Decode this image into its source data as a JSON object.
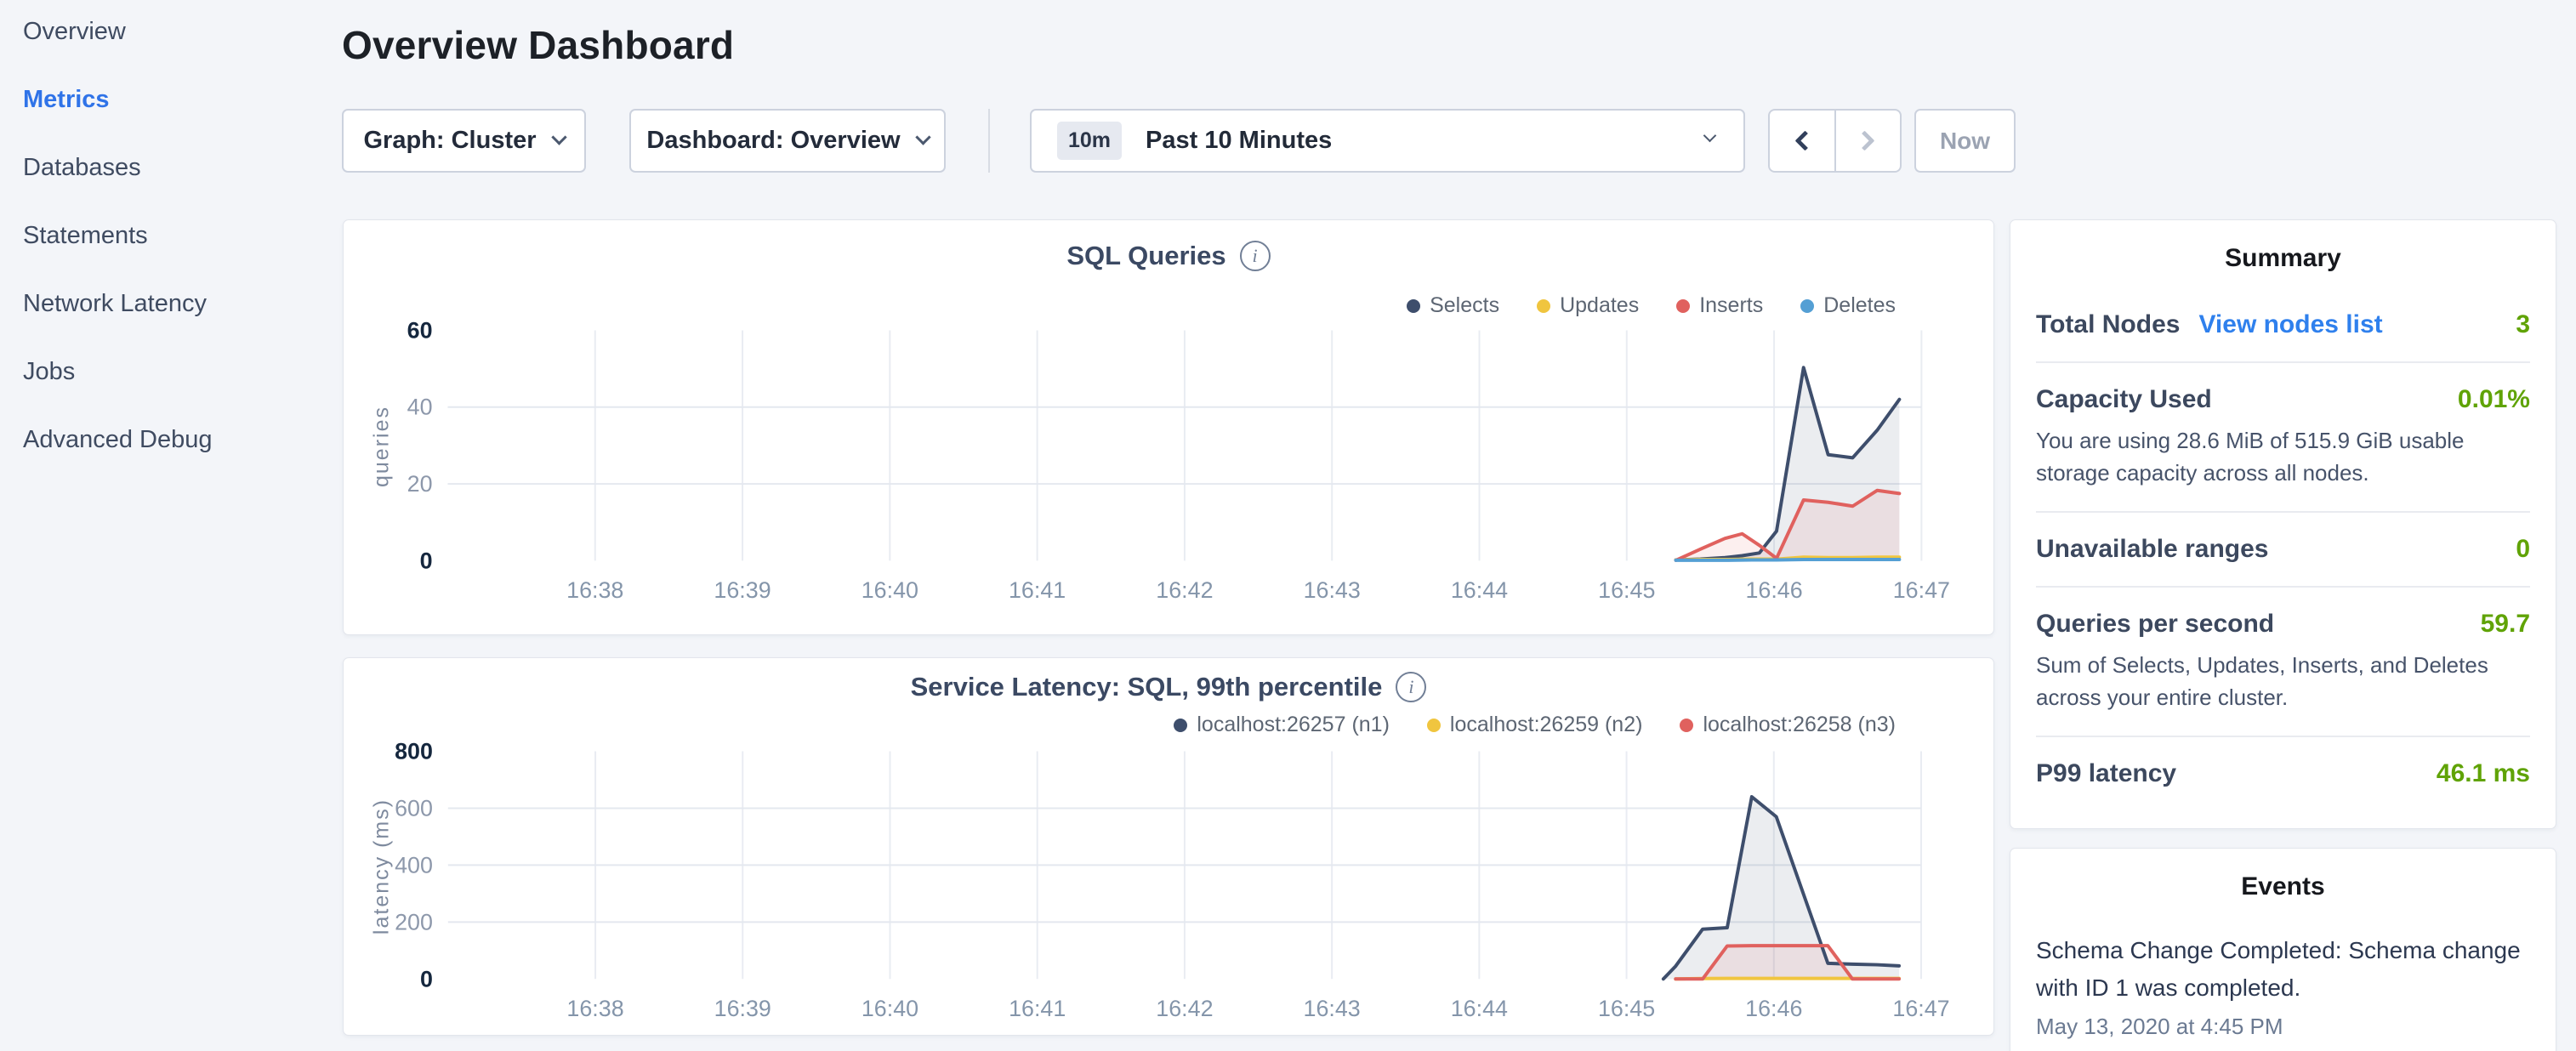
{
  "app": {
    "title": "Overview Dashboard"
  },
  "sidebar": {
    "items": [
      {
        "label": "Overview",
        "active": false
      },
      {
        "label": "Metrics",
        "active": true
      },
      {
        "label": "Databases",
        "active": false
      },
      {
        "label": "Statements",
        "active": false
      },
      {
        "label": "Network Latency",
        "active": false
      },
      {
        "label": "Jobs",
        "active": false
      },
      {
        "label": "Advanced Debug",
        "active": false
      }
    ]
  },
  "toolbar": {
    "graph_label": "Graph: Cluster",
    "dashboard_label": "Dashboard: Overview",
    "time_badge": "10m",
    "time_label": "Past 10 Minutes",
    "now_label": "Now"
  },
  "colors": {
    "sidebar_active_blue": "#2f73e8",
    "link_blue": "#2f80ed",
    "value_green": "#60a306",
    "navy_series": "#3e4e6c",
    "yellow_series": "#f0c53f",
    "red_series": "#e0615e",
    "blue_series": "#549fd4"
  },
  "chart_data": [
    {
      "type": "area",
      "title": "SQL Queries",
      "ylabel": "queries",
      "ylim": [
        0,
        60
      ],
      "x_domain_seconds": [
        0,
        600
      ],
      "grid": true,
      "legend_position": "top-right",
      "yticks": [
        {
          "v": 0,
          "label": "0",
          "strong": true
        },
        {
          "v": 20,
          "label": "20",
          "strong": false
        },
        {
          "v": 40,
          "label": "40",
          "strong": false
        },
        {
          "v": 60,
          "label": "60",
          "strong": true
        }
      ],
      "xticks": [
        {
          "t": 60,
          "label": "16:38"
        },
        {
          "t": 120,
          "label": "16:39"
        },
        {
          "t": 180,
          "label": "16:40"
        },
        {
          "t": 240,
          "label": "16:41"
        },
        {
          "t": 300,
          "label": "16:42"
        },
        {
          "t": 360,
          "label": "16:43"
        },
        {
          "t": 420,
          "label": "16:44"
        },
        {
          "t": 480,
          "label": "16:45"
        },
        {
          "t": 540,
          "label": "16:46"
        },
        {
          "t": 600,
          "label": "16:47"
        }
      ],
      "series": [
        {
          "name": "Selects",
          "color": "#3e4e6c",
          "fill": "rgba(62,78,108,0.10)",
          "points": [
            [
              500,
              0.2
            ],
            [
              510,
              0.4
            ],
            [
              520,
              0.8
            ],
            [
              527,
              1.3
            ],
            [
              534,
              2
            ],
            [
              541,
              7.7
            ],
            [
              552,
              50.3
            ],
            [
              562,
              27.6
            ],
            [
              572,
              26.8
            ],
            [
              582,
              34
            ],
            [
              591,
              42
            ]
          ]
        },
        {
          "name": "Updates",
          "color": "#f0c53f",
          "fill": "none",
          "points": [
            [
              500,
              0.2
            ],
            [
              510,
              0.3
            ],
            [
              520,
              0.3
            ],
            [
              531,
              0.4
            ],
            [
              541,
              0.4
            ],
            [
              552,
              0.9
            ],
            [
              562,
              0.8
            ],
            [
              572,
              0.8
            ],
            [
              582,
              0.9
            ],
            [
              591,
              0.9
            ]
          ]
        },
        {
          "name": "Inserts",
          "color": "#e0615e",
          "fill": "rgba(224,97,94,0.10)",
          "points": [
            [
              500,
              0.1
            ],
            [
              510,
              3
            ],
            [
              520,
              5.8
            ],
            [
              527,
              7
            ],
            [
              534,
              4
            ],
            [
              541,
              0.6
            ],
            [
              552,
              15.8
            ],
            [
              562,
              15.2
            ],
            [
              572,
              14.2
            ],
            [
              582,
              18.3
            ],
            [
              591,
              17.5
            ]
          ]
        },
        {
          "name": "Deletes",
          "color": "#549fd4",
          "fill": "none",
          "points": [
            [
              500,
              0.1
            ],
            [
              510,
              0.1
            ],
            [
              520,
              0.1
            ],
            [
              531,
              0.2
            ],
            [
              541,
              0.2
            ],
            [
              552,
              0.3
            ],
            [
              562,
              0.3
            ],
            [
              572,
              0.3
            ],
            [
              582,
              0.3
            ],
            [
              591,
              0.3
            ]
          ]
        }
      ]
    },
    {
      "type": "area",
      "title": "Service Latency: SQL, 99th percentile",
      "ylabel": "latency (ms)",
      "ylim": [
        0,
        800
      ],
      "x_domain_seconds": [
        0,
        600
      ],
      "grid": true,
      "legend_position": "top-right",
      "yticks": [
        {
          "v": 0,
          "label": "0",
          "strong": true
        },
        {
          "v": 200,
          "label": "200",
          "strong": false
        },
        {
          "v": 400,
          "label": "400",
          "strong": false
        },
        {
          "v": 600,
          "label": "600",
          "strong": false
        },
        {
          "v": 800,
          "label": "800",
          "strong": true
        }
      ],
      "xticks": [
        {
          "t": 60,
          "label": "16:38"
        },
        {
          "t": 120,
          "label": "16:39"
        },
        {
          "t": 180,
          "label": "16:40"
        },
        {
          "t": 240,
          "label": "16:41"
        },
        {
          "t": 300,
          "label": "16:42"
        },
        {
          "t": 360,
          "label": "16:43"
        },
        {
          "t": 420,
          "label": "16:44"
        },
        {
          "t": 480,
          "label": "16:45"
        },
        {
          "t": 540,
          "label": "16:46"
        },
        {
          "t": 600,
          "label": "16:47"
        }
      ],
      "series": [
        {
          "name": "localhost:26257 (n1)",
          "color": "#3e4e6c",
          "fill": "rgba(62,78,108,0.10)",
          "points": [
            [
              495,
              0
            ],
            [
              500,
              45
            ],
            [
              511,
              175
            ],
            [
              521,
              180
            ],
            [
              531,
              640
            ],
            [
              541,
              570
            ],
            [
              552,
              300
            ],
            [
              562,
              55
            ],
            [
              572,
              52
            ],
            [
              582,
              50
            ],
            [
              591,
              46
            ]
          ]
        },
        {
          "name": "localhost:26259 (n2)",
          "color": "#f0c53f",
          "fill": "none",
          "points": [
            [
              500,
              0
            ],
            [
              511,
              1.5
            ],
            [
              521,
              2
            ],
            [
              531,
              2
            ],
            [
              541,
              2
            ],
            [
              552,
              2
            ],
            [
              562,
              2
            ],
            [
              572,
              2
            ],
            [
              582,
              2
            ],
            [
              591,
              2
            ]
          ]
        },
        {
          "name": "localhost:26258 (n3)",
          "color": "#e0615e",
          "fill": "rgba(224,97,94,0.10)",
          "points": [
            [
              500,
              0
            ],
            [
              511,
              0
            ],
            [
              521,
              116
            ],
            [
              531,
              117
            ],
            [
              541,
              117
            ],
            [
              552,
              117
            ],
            [
              562,
              117
            ],
            [
              572,
              0
            ],
            [
              582,
              0
            ],
            [
              591,
              0
            ]
          ]
        }
      ]
    }
  ],
  "summary": {
    "title": "Summary",
    "rows": [
      {
        "label": "Total Nodes",
        "link": "View nodes list",
        "value": "3"
      },
      {
        "label": "Capacity Used",
        "value": "0.01%",
        "desc": "You are using 28.6 MiB of 515.9 GiB usable storage capacity across all nodes."
      },
      {
        "label": "Unavailable ranges",
        "value": "0"
      },
      {
        "label": "Queries per second",
        "value": "59.7",
        "desc": "Sum of Selects, Updates, Inserts, and Deletes across your entire cluster."
      },
      {
        "label": "P99 latency",
        "value": "46.1 ms"
      }
    ]
  },
  "events": {
    "title": "Events",
    "items": [
      {
        "text": "Schema Change Completed: Schema change with ID 1 was completed.",
        "timestamp": "May 13, 2020 at 4:45 PM"
      }
    ]
  }
}
